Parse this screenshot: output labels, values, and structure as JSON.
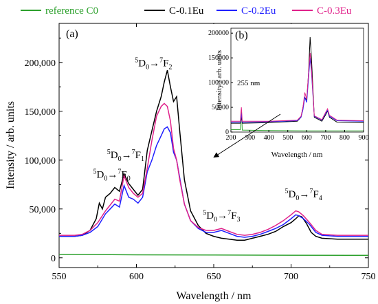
{
  "chart_data": {
    "type": "line",
    "xlabel": "Wavelength / nm",
    "ylabel": "Intensity / arb. units",
    "xlim": [
      550,
      750
    ],
    "ylim": [
      -10000,
      240000
    ],
    "x_ticks": [
      550,
      600,
      650,
      700,
      750
    ],
    "y_ticks": [
      0,
      50000,
      100000,
      150000,
      200000
    ],
    "x_tick_labels": [
      "550",
      "600",
      "650",
      "700",
      "750"
    ],
    "y_tick_labels": [
      "0",
      "50,000",
      "100,000",
      "150,000",
      "200,000"
    ],
    "panel_label": "(a)",
    "legend": {
      "placement": "top-outside",
      "entries": [
        {
          "label": "reference C0",
          "color": "#2ca02c"
        },
        {
          "label": "C-0.1Eu",
          "color": "#000000"
        },
        {
          "label": "C-0.2Eu",
          "color": "#1f1fff"
        },
        {
          "label": "C-0.3Eu",
          "color": "#e0218a"
        }
      ]
    },
    "annotations": [
      {
        "label": "7F0",
        "x": 572,
        "y": 82000,
        "lower": "D",
        "sup1": "5",
        "sub1": "0",
        "sup2": "7",
        "upper": "F",
        "sub2": "0"
      },
      {
        "label": "7F1",
        "x": 581,
        "y": 102000,
        "lower": "D",
        "sup1": "5",
        "sub1": "0",
        "sup2": "7",
        "upper": "F",
        "sub2": "1"
      },
      {
        "label": "7F2",
        "x": 599,
        "y": 196000,
        "lower": "D",
        "sup1": "5",
        "sub1": "0",
        "sup2": "7",
        "upper": "F",
        "sub2": "2"
      },
      {
        "label": "7F3",
        "x": 643,
        "y": 40000,
        "lower": "D",
        "sup1": "5",
        "sub1": "0",
        "sup2": "7",
        "upper": "F",
        "sub2": "3"
      },
      {
        "label": "7F4",
        "x": 696,
        "y": 62000,
        "lower": "D",
        "sup1": "5",
        "sub1": "0",
        "sup2": "7",
        "upper": "F",
        "sub2": "4"
      }
    ],
    "series": [
      {
        "color": "#2ca02c",
        "x": [
          550,
          600,
          650,
          700,
          750
        ],
        "y": [
          3500,
          3000,
          2800,
          2600,
          2500
        ]
      },
      {
        "color": "#000000",
        "x": [
          550,
          560,
          565,
          570,
          574,
          576,
          578,
          580,
          583,
          586,
          589,
          592,
          595,
          598,
          601,
          604,
          607,
          610,
          613,
          616,
          618,
          620,
          622,
          624,
          626,
          628,
          631,
          635,
          640,
          645,
          650,
          655,
          660,
          665,
          670,
          675,
          680,
          685,
          690,
          695,
          700,
          703,
          705,
          707,
          710,
          713,
          716,
          720,
          730,
          740,
          750
        ],
        "y": [
          22000,
          22000,
          23000,
          28000,
          40000,
          56000,
          50000,
          62000,
          66000,
          72000,
          68000,
          86000,
          76000,
          70000,
          64000,
          70000,
          110000,
          130000,
          150000,
          165000,
          180000,
          192000,
          175000,
          160000,
          165000,
          130000,
          80000,
          48000,
          33000,
          25000,
          22000,
          20000,
          19000,
          18000,
          18000,
          20000,
          22000,
          24000,
          27000,
          32000,
          36000,
          40000,
          43000,
          42000,
          35000,
          26000,
          22000,
          20000,
          19000,
          19000,
          19000
        ]
      },
      {
        "color": "#1f1fff",
        "x": [
          550,
          560,
          565,
          570,
          575,
          580,
          583,
          586,
          589,
          592,
          595,
          598,
          601,
          604,
          607,
          610,
          613,
          616,
          618,
          620,
          622,
          624,
          626,
          628,
          631,
          635,
          640,
          645,
          650,
          655,
          660,
          665,
          670,
          675,
          680,
          685,
          690,
          695,
          700,
          703,
          705,
          708,
          712,
          716,
          720,
          730,
          740,
          750
        ],
        "y": [
          22000,
          22000,
          23000,
          26000,
          32000,
          45000,
          50000,
          55000,
          52000,
          74000,
          62000,
          60000,
          56000,
          62000,
          88000,
          100000,
          115000,
          125000,
          132000,
          134000,
          128000,
          108000,
          100000,
          82000,
          55000,
          38000,
          30000,
          26000,
          26000,
          28000,
          25000,
          22000,
          21000,
          22000,
          24000,
          27000,
          30000,
          34000,
          40000,
          44000,
          43000,
          40000,
          34000,
          26000,
          23000,
          22000,
          22000,
          22000
        ]
      },
      {
        "color": "#e0218a",
        "x": [
          550,
          560,
          565,
          570,
          575,
          580,
          583,
          586,
          589,
          592,
          595,
          598,
          601,
          604,
          607,
          610,
          613,
          616,
          618,
          620,
          622,
          624,
          626,
          628,
          631,
          635,
          640,
          645,
          650,
          655,
          660,
          665,
          670,
          675,
          680,
          685,
          690,
          695,
          700,
          703,
          705,
          708,
          712,
          716,
          720,
          730,
          740,
          750
        ],
        "y": [
          23000,
          23000,
          24000,
          28000,
          36000,
          48000,
          54000,
          60000,
          58000,
          84000,
          72000,
          66000,
          62000,
          66000,
          92000,
          120000,
          145000,
          155000,
          158000,
          155000,
          140000,
          112000,
          100000,
          80000,
          55000,
          38000,
          31000,
          28000,
          28000,
          30000,
          27000,
          24000,
          23000,
          24000,
          26000,
          29000,
          33000,
          38000,
          44000,
          48000,
          47000,
          43000,
          36000,
          28000,
          24000,
          23000,
          23000,
          23000
        ]
      }
    ],
    "inset": {
      "panel_label": "(b)",
      "xlabel": "Wavelength / nm",
      "ylabel": "Intensity / arb. units",
      "xlim": [
        200,
        900
      ],
      "ylim": [
        0,
        210000
      ],
      "x_ticks": [
        200,
        300,
        400,
        500,
        600,
        700,
        800,
        900
      ],
      "y_ticks": [
        0,
        50000,
        100000,
        150000,
        200000
      ],
      "x_tick_labels": [
        "200",
        "300",
        "400",
        "500",
        "600",
        "700",
        "800",
        "900"
      ],
      "y_tick_labels": [
        "0",
        "50000",
        "100000",
        "150000",
        "200000"
      ],
      "annotation": "255 nm",
      "series": [
        {
          "color": "#2ca02c",
          "x": [
            200,
            250,
            253,
            255,
            257,
            260,
            400,
            600,
            900
          ],
          "y": [
            5000,
            5000,
            30000,
            42000,
            30000,
            4000,
            3000,
            2500,
            2500
          ]
        },
        {
          "color": "#000000",
          "x": [
            200,
            250,
            253,
            255,
            257,
            260,
            400,
            550,
            570,
            580,
            590,
            600,
            610,
            618,
            625,
            640,
            680,
            700,
            710,
            720,
            760,
            900
          ],
          "y": [
            18000,
            18000,
            25000,
            30000,
            25000,
            18000,
            19000,
            22000,
            30000,
            50000,
            70000,
            65000,
            120000,
            192000,
            150000,
            30000,
            22000,
            35000,
            43000,
            30000,
            20000,
            19000
          ]
        },
        {
          "color": "#1f1fff",
          "x": [
            200,
            250,
            253,
            255,
            257,
            260,
            400,
            550,
            570,
            580,
            590,
            600,
            610,
            618,
            625,
            640,
            680,
            700,
            710,
            720,
            760,
            900
          ],
          "y": [
            20000,
            20000,
            30000,
            38000,
            30000,
            20000,
            21000,
            23000,
            30000,
            45000,
            70000,
            60000,
            110000,
            150000,
            120000,
            32000,
            24000,
            38000,
            44000,
            32000,
            23000,
            22000
          ]
        },
        {
          "color": "#e0218a",
          "x": [
            200,
            250,
            253,
            255,
            257,
            260,
            400,
            550,
            570,
            580,
            590,
            600,
            610,
            618,
            625,
            640,
            680,
            700,
            710,
            720,
            760,
            900
          ],
          "y": [
            22000,
            22000,
            40000,
            50000,
            40000,
            22000,
            22000,
            24000,
            32000,
            50000,
            80000,
            66000,
            120000,
            160000,
            128000,
            33000,
            25000,
            40000,
            47000,
            34000,
            24000,
            23000
          ]
        }
      ]
    }
  }
}
